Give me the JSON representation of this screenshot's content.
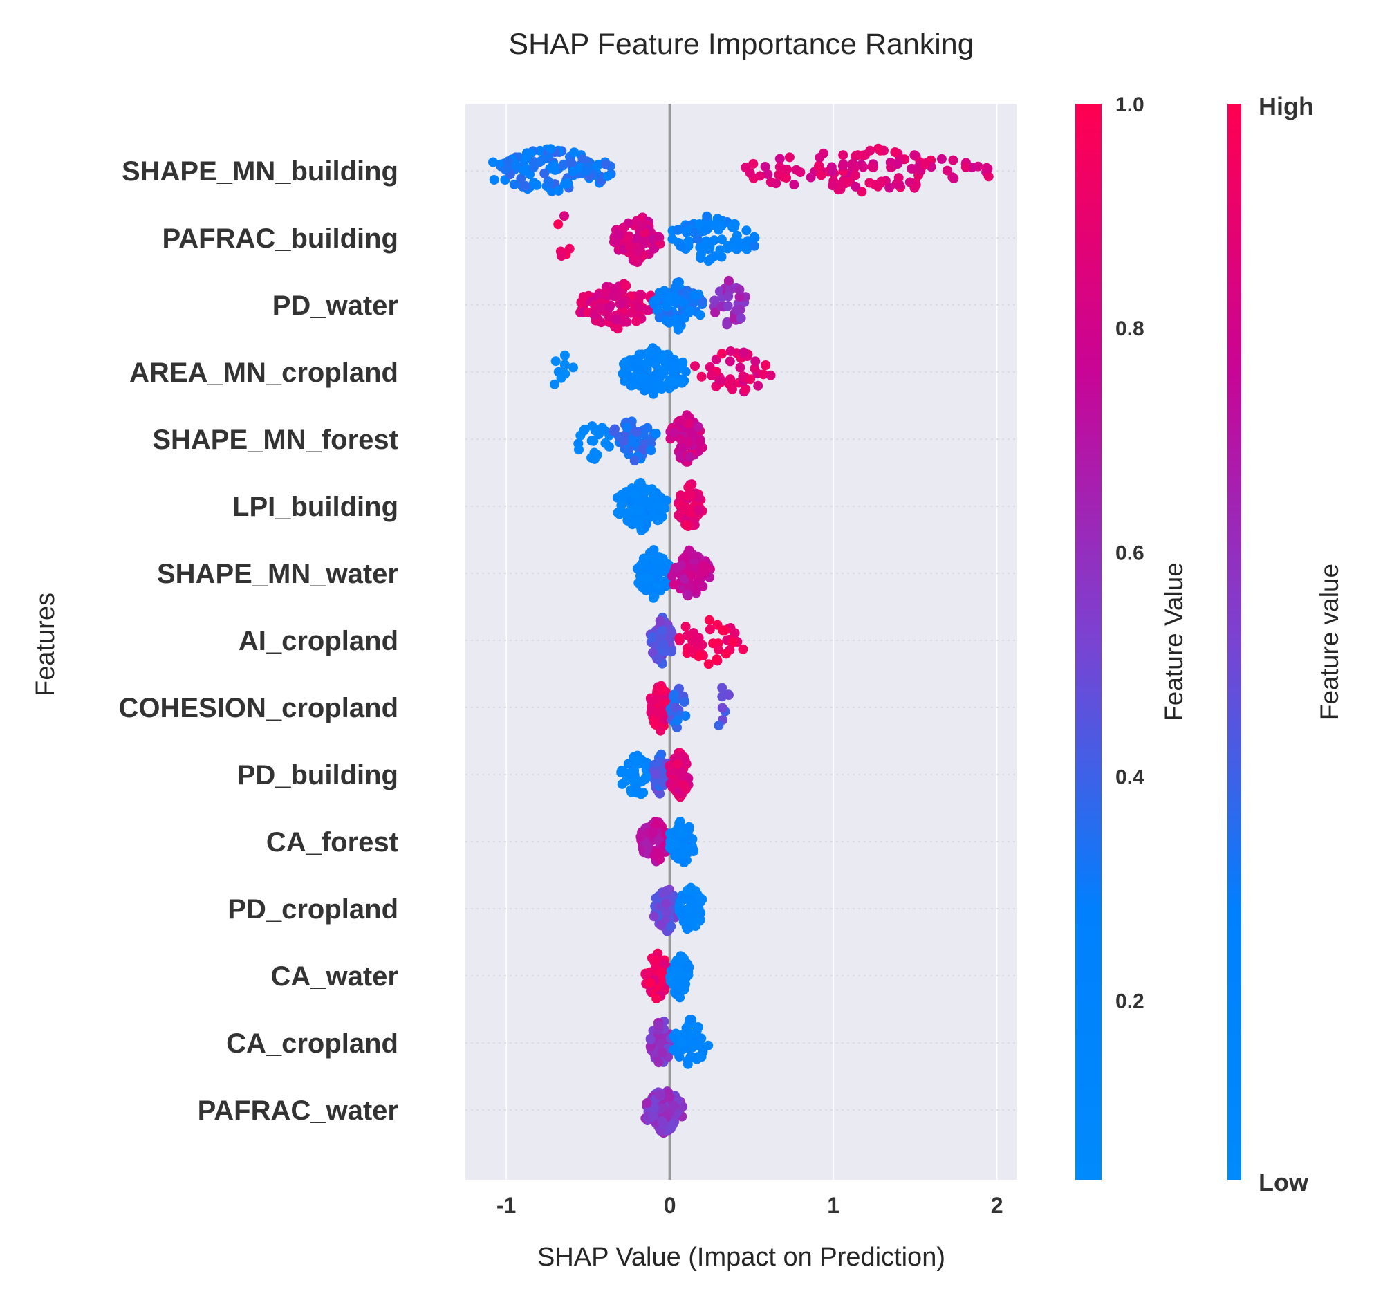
{
  "chart_data": {
    "type": "scatter",
    "subtype": "shap-beeswarm",
    "title": "SHAP Feature Importance Ranking",
    "xlabel": "SHAP Value (Impact on Prediction)",
    "ylabel": "Features",
    "xlim": [
      -1.25,
      2.12
    ],
    "xticks": [
      -1,
      0,
      1,
      2
    ],
    "xtick_labels": [
      "-1",
      "0",
      "1",
      "2"
    ],
    "grid": true,
    "zero_line": true,
    "features": [
      "SHAPE_MN_building",
      "PAFRAC_building",
      "PD_water",
      "AREA_MN_cropland",
      "SHAPE_MN_forest",
      "LPI_building",
      "SHAPE_MN_water",
      "AI_cropland",
      "COHESION_cropland",
      "PD_building",
      "CA_forest",
      "PD_cropland",
      "CA_water",
      "CA_cropland",
      "PAFRAC_water"
    ],
    "distributions": [
      {
        "feature": "SHAPE_MN_building",
        "groups": [
          [
            -1.1,
            -0.35,
            0.28,
            120
          ],
          [
            0.45,
            1.95,
            0.85,
            120
          ]
        ]
      },
      {
        "feature": "PAFRAC_building",
        "groups": [
          [
            -0.7,
            -0.6,
            0.9,
            6
          ],
          [
            -0.35,
            -0.05,
            0.82,
            90
          ],
          [
            0.0,
            0.52,
            0.22,
            80
          ]
        ]
      },
      {
        "feature": "PD_water",
        "groups": [
          [
            -0.55,
            -0.1,
            0.85,
            100
          ],
          [
            -0.1,
            0.2,
            0.25,
            80
          ],
          [
            0.25,
            0.48,
            0.6,
            30
          ]
        ]
      },
      {
        "feature": "AREA_MN_cropland",
        "groups": [
          [
            -0.72,
            -0.58,
            0.08,
            8
          ],
          [
            -0.3,
            0.1,
            0.15,
            110
          ],
          [
            0.15,
            0.62,
            0.88,
            40
          ]
        ]
      },
      {
        "feature": "SHAPE_MN_forest",
        "groups": [
          [
            -0.57,
            -0.35,
            0.1,
            22
          ],
          [
            -0.35,
            -0.08,
            0.32,
            50
          ],
          [
            0.0,
            0.2,
            0.78,
            100
          ]
        ]
      },
      {
        "feature": "LPI_building",
        "groups": [
          [
            -0.32,
            -0.02,
            0.12,
            110
          ],
          [
            0.05,
            0.2,
            0.88,
            70
          ]
        ]
      },
      {
        "feature": "SHAPE_MN_water",
        "groups": [
          [
            -0.2,
            0.0,
            0.15,
            110
          ],
          [
            0.0,
            0.25,
            0.75,
            80
          ]
        ]
      },
      {
        "feature": "AI_cropland",
        "groups": [
          [
            -0.12,
            0.02,
            0.45,
            60
          ],
          [
            0.02,
            0.45,
            0.95,
            40
          ]
        ]
      },
      {
        "feature": "COHESION_cropland",
        "groups": [
          [
            -0.12,
            0.0,
            0.93,
            100
          ],
          [
            0.0,
            0.1,
            0.35,
            25
          ],
          [
            0.25,
            0.38,
            0.45,
            8
          ]
        ]
      },
      {
        "feature": "PD_building",
        "groups": [
          [
            -0.3,
            -0.1,
            0.12,
            40
          ],
          [
            -0.1,
            0.0,
            0.4,
            40
          ],
          [
            0.0,
            0.12,
            0.85,
            70
          ]
        ]
      },
      {
        "feature": "CA_forest",
        "groups": [
          [
            -0.18,
            0.0,
            0.72,
            70
          ],
          [
            0.0,
            0.15,
            0.12,
            70
          ]
        ]
      },
      {
        "feature": "PD_cropland",
        "groups": [
          [
            -0.1,
            0.05,
            0.45,
            70
          ],
          [
            0.05,
            0.2,
            0.12,
            60
          ]
        ]
      },
      {
        "feature": "CA_water",
        "groups": [
          [
            -0.15,
            0.0,
            0.92,
            80
          ],
          [
            0.0,
            0.12,
            0.12,
            60
          ]
        ]
      },
      {
        "feature": "CA_cropland",
        "groups": [
          [
            -0.12,
            0.02,
            0.55,
            70
          ],
          [
            0.02,
            0.24,
            0.15,
            50
          ]
        ]
      },
      {
        "feature": "PAFRAC_water",
        "groups": [
          [
            -0.15,
            0.08,
            0.55,
            130
          ]
        ]
      }
    ],
    "colorbars": [
      {
        "label": "Feature Value",
        "ticks": [
          0.2,
          0.4,
          0.6,
          0.8,
          1.0
        ],
        "tick_labels": [
          "0.2",
          "0.4",
          "0.6",
          "0.8",
          "1.0"
        ]
      },
      {
        "label": "Feature value",
        "top_label": "High",
        "bottom_label": "Low"
      }
    ],
    "colormap": [
      "#008afb",
      "#0086fc",
      "#5e5ce3",
      "#b411a8",
      "#ff0051"
    ]
  }
}
